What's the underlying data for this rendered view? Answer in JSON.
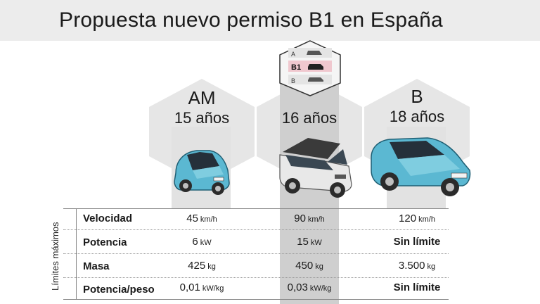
{
  "title": "Propuesta nuevo permiso B1 en España",
  "icons": {
    "card": "license-card-icon"
  },
  "license_card": {
    "rows": [
      "A",
      "B1",
      "B"
    ]
  },
  "columns": [
    {
      "code": "AM",
      "age": "15 años",
      "car": "small-blue-car-icon"
    },
    {
      "code": "",
      "age": "16 años",
      "car": "quadricycle-car-icon"
    },
    {
      "code": "B",
      "age": "18 años",
      "car": "blue-sedan-icon"
    }
  ],
  "side_label": "Límites máximos",
  "table": {
    "rows": [
      {
        "label": "Velocidad",
        "cells": [
          {
            "v": "45",
            "u": "km/h"
          },
          {
            "v": "90",
            "u": "km/h"
          },
          {
            "v": "120",
            "u": "km/h"
          }
        ]
      },
      {
        "label": "Potencia",
        "cells": [
          {
            "v": "6",
            "u": "kW"
          },
          {
            "v": "15",
            "u": "kW"
          },
          {
            "v": "Sin límite",
            "u": ""
          }
        ]
      },
      {
        "label": "Masa",
        "cells": [
          {
            "v": "425",
            "u": "kg"
          },
          {
            "v": "450",
            "u": "kg"
          },
          {
            "v": "3.500",
            "u": "kg"
          }
        ]
      },
      {
        "label": "Potencia/peso",
        "cells": [
          {
            "v": "0,01",
            "u": "kW/kg"
          },
          {
            "v": "0,03",
            "u": "kW/kg"
          },
          {
            "v": "Sin límite",
            "u": ""
          }
        ]
      }
    ]
  },
  "colors": {
    "band": "#d6d6d6",
    "header": "#ececec",
    "car_blue": "#5bb8d2",
    "car_white": "#e8e8e8"
  }
}
